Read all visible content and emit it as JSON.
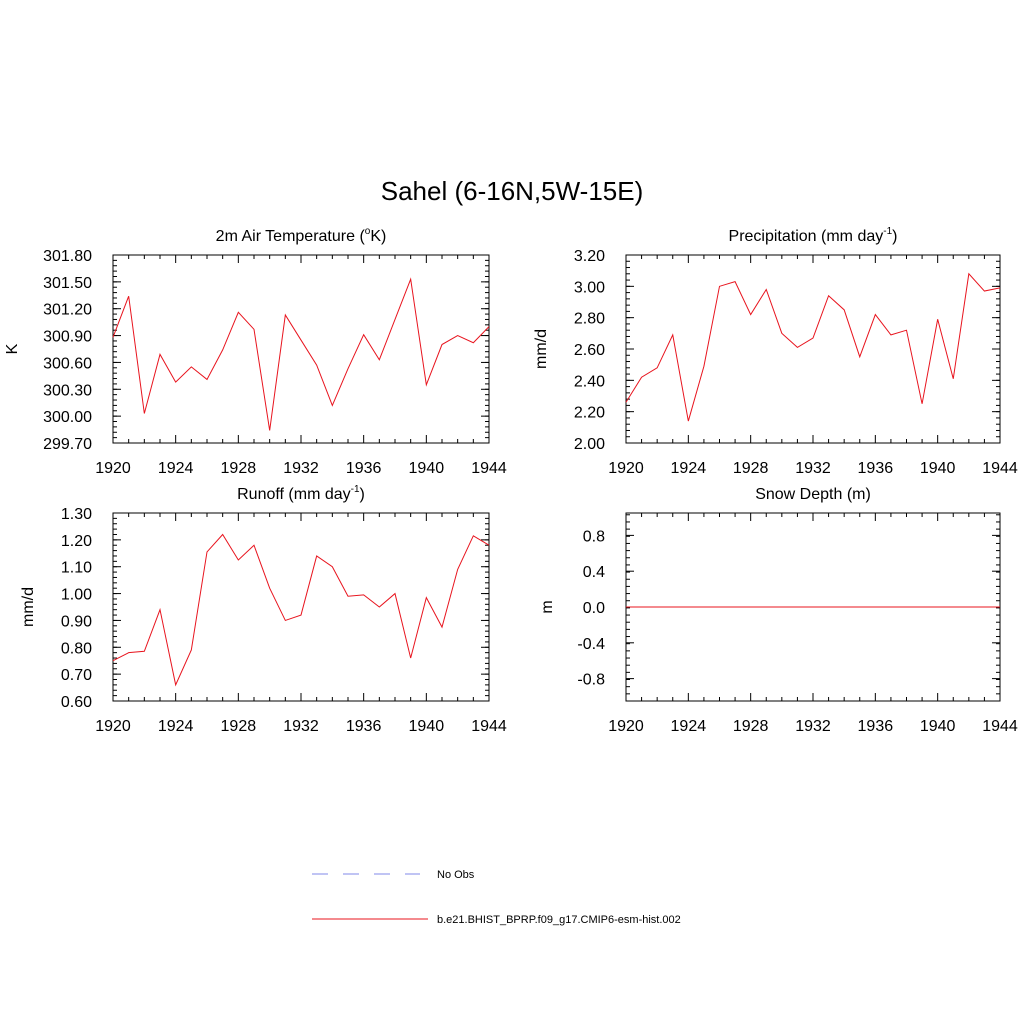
{
  "figure": {
    "title": "Sahel (6-16N,5W-15E)",
    "line_color": "#e8141e",
    "obs_color": "#9aa0ee"
  },
  "legend": {
    "entries": [
      {
        "label": "No Obs",
        "style": "dashed",
        "color": "#9aa0ee"
      },
      {
        "label": "b.e21.BHIST_BPRP.f09_g17.CMIP6-esm-hist.002",
        "style": "solid",
        "color": "#e8141e"
      }
    ]
  },
  "chart_data": [
    {
      "type": "line",
      "id": "temp",
      "title": "2m Air Temperature (",
      "title_sup": "o",
      "title_tail": "K)",
      "ylabel": "K",
      "xlim": [
        1920,
        1944
      ],
      "ylim": [
        299.7,
        301.8
      ],
      "xticks": [
        1920,
        1924,
        1928,
        1932,
        1936,
        1940,
        1944
      ],
      "yticks": [
        299.7,
        300.0,
        300.3,
        300.6,
        300.9,
        301.2,
        301.5,
        301.8
      ],
      "ytick_labels": [
        "299.70",
        "300.00",
        "300.30",
        "300.60",
        "300.90",
        "301.20",
        "301.50",
        "301.80"
      ],
      "series": [
        {
          "name": "b.e21.BHIST_BPRP.f09_g17.CMIP6-esm-hist.002",
          "x": [
            1920,
            1921,
            1922,
            1923,
            1924,
            1925,
            1926,
            1927,
            1928,
            1929,
            1930,
            1931,
            1932,
            1933,
            1934,
            1935,
            1936,
            1937,
            1938,
            1939,
            1940,
            1941,
            1942,
            1943,
            1944
          ],
          "values": [
            300.88,
            301.34,
            300.03,
            300.69,
            300.38,
            300.55,
            300.41,
            300.74,
            301.16,
            300.97,
            299.84,
            301.13,
            300.85,
            300.57,
            300.12,
            300.53,
            300.91,
            300.63,
            301.08,
            301.53,
            300.35,
            300.8,
            300.9,
            300.82,
            301.0
          ]
        }
      ]
    },
    {
      "type": "line",
      "id": "precip",
      "title": "Precipitation (mm day",
      "title_sup": "-1",
      "title_tail": ")",
      "ylabel": "mm/d",
      "xlim": [
        1920,
        1944
      ],
      "ylim": [
        2.0,
        3.2
      ],
      "xticks": [
        1920,
        1924,
        1928,
        1932,
        1936,
        1940,
        1944
      ],
      "yticks": [
        2.0,
        2.2,
        2.4,
        2.6,
        2.8,
        3.0,
        3.2
      ],
      "ytick_labels": [
        "2.00",
        "2.20",
        "2.40",
        "2.60",
        "2.80",
        "3.00",
        "3.20"
      ],
      "series": [
        {
          "name": "b.e21.BHIST_BPRP.f09_g17.CMIP6-esm-hist.002",
          "x": [
            1920,
            1921,
            1922,
            1923,
            1924,
            1925,
            1926,
            1927,
            1928,
            1929,
            1930,
            1931,
            1932,
            1933,
            1934,
            1935,
            1936,
            1937,
            1938,
            1939,
            1940,
            1941,
            1942,
            1943,
            1944
          ],
          "values": [
            2.26,
            2.42,
            2.48,
            2.69,
            2.14,
            2.49,
            3.0,
            3.03,
            2.82,
            2.98,
            2.7,
            2.61,
            2.67,
            2.94,
            2.85,
            2.55,
            2.82,
            2.69,
            2.72,
            2.25,
            2.79,
            2.41,
            3.08,
            2.97,
            2.99
          ]
        }
      ]
    },
    {
      "type": "line",
      "id": "runoff",
      "title": "Runoff (mm day",
      "title_sup": "-1",
      "title_tail": ")",
      "ylabel": "mm/d",
      "xlim": [
        1920,
        1944
      ],
      "ylim": [
        0.6,
        1.3
      ],
      "xticks": [
        1920,
        1924,
        1928,
        1932,
        1936,
        1940,
        1944
      ],
      "yticks": [
        0.6,
        0.7,
        0.8,
        0.9,
        1.0,
        1.1,
        1.2,
        1.3
      ],
      "ytick_labels": [
        "0.60",
        "0.70",
        "0.80",
        "0.90",
        "1.00",
        "1.10",
        "1.20",
        "1.30"
      ],
      "series": [
        {
          "name": "b.e21.BHIST_BPRP.f09_g17.CMIP6-esm-hist.002",
          "x": [
            1920,
            1921,
            1922,
            1923,
            1924,
            1925,
            1926,
            1927,
            1928,
            1929,
            1930,
            1931,
            1932,
            1933,
            1934,
            1935,
            1936,
            1937,
            1938,
            1939,
            1940,
            1941,
            1942,
            1943,
            1944
          ],
          "values": [
            0.75,
            0.78,
            0.785,
            0.94,
            0.66,
            0.79,
            1.155,
            1.22,
            1.125,
            1.18,
            1.02,
            0.9,
            0.92,
            1.14,
            1.1,
            0.99,
            0.995,
            0.95,
            1.0,
            0.76,
            0.985,
            0.875,
            1.09,
            1.215,
            1.18
          ]
        }
      ]
    },
    {
      "type": "line",
      "id": "snow",
      "title": "Snow Depth (m)",
      "title_sup": "",
      "title_tail": "",
      "ylabel": "m",
      "xlim": [
        1920,
        1944
      ],
      "ylim": [
        -1.05,
        1.05
      ],
      "xticks": [
        1920,
        1924,
        1928,
        1932,
        1936,
        1940,
        1944
      ],
      "yticks": [
        -0.8,
        -0.4,
        0.0,
        0.4,
        0.8
      ],
      "ytick_labels": [
        "-0.8",
        "-0.4",
        "0.0",
        "0.4",
        "0.8"
      ],
      "series": [
        {
          "name": "b.e21.BHIST_BPRP.f09_g17.CMIP6-esm-hist.002",
          "x": [
            1920,
            1944
          ],
          "values": [
            0.0,
            0.0
          ]
        }
      ]
    }
  ]
}
